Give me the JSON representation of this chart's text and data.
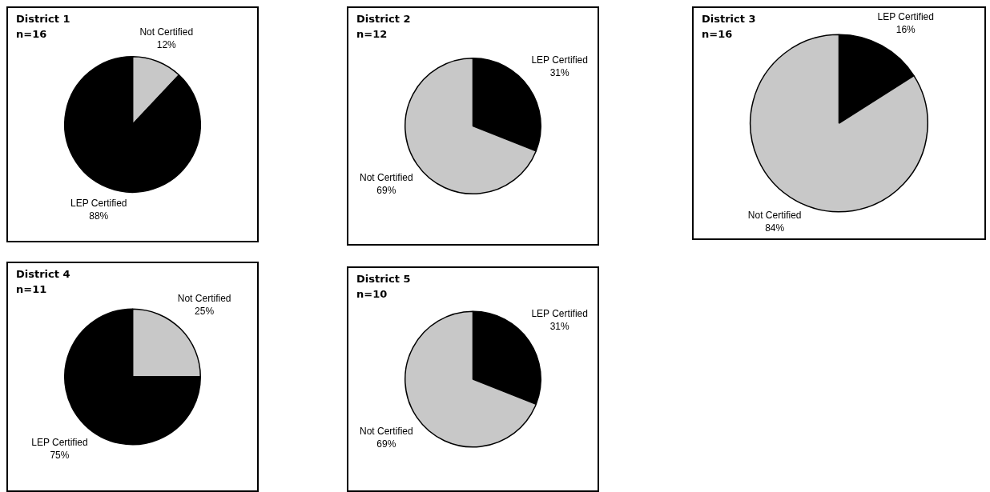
{
  "chart_data": [
    {
      "type": "pie",
      "title": "District 1",
      "subtitle": "n=16",
      "categories": [
        "Not Certified",
        "LEP Certified"
      ],
      "values": [
        12,
        88
      ],
      "colors": [
        "#c8c8c8",
        "#000000"
      ],
      "value_labels": [
        "12%",
        "88%"
      ],
      "legend": false
    },
    {
      "type": "pie",
      "title": "District 2",
      "subtitle": "n=12",
      "categories": [
        "LEP Certified",
        "Not Certified"
      ],
      "values": [
        31,
        69
      ],
      "colors": [
        "#000000",
        "#c8c8c8"
      ],
      "value_labels": [
        "31%",
        "69%"
      ],
      "legend": false
    },
    {
      "type": "pie",
      "title": "District 3",
      "subtitle": "n=16",
      "categories": [
        "LEP Certified",
        "Not Certified"
      ],
      "values": [
        16,
        84
      ],
      "colors": [
        "#000000",
        "#c8c8c8"
      ],
      "value_labels": [
        "16%",
        "84%"
      ],
      "legend": false
    },
    {
      "type": "pie",
      "title": "District 4",
      "subtitle": "n=11",
      "categories": [
        "Not Certified",
        "LEP Certified"
      ],
      "values": [
        25,
        75
      ],
      "colors": [
        "#c8c8c8",
        "#000000"
      ],
      "value_labels": [
        "25%",
        "75%"
      ],
      "legend": false
    },
    {
      "type": "pie",
      "title": "District 5",
      "subtitle": "n=10",
      "categories": [
        "LEP Certified",
        "Not Certified"
      ],
      "values": [
        31,
        69
      ],
      "colors": [
        "#000000",
        "#c8c8c8"
      ],
      "value_labels": [
        "31%",
        "69%"
      ],
      "legend": false
    }
  ]
}
